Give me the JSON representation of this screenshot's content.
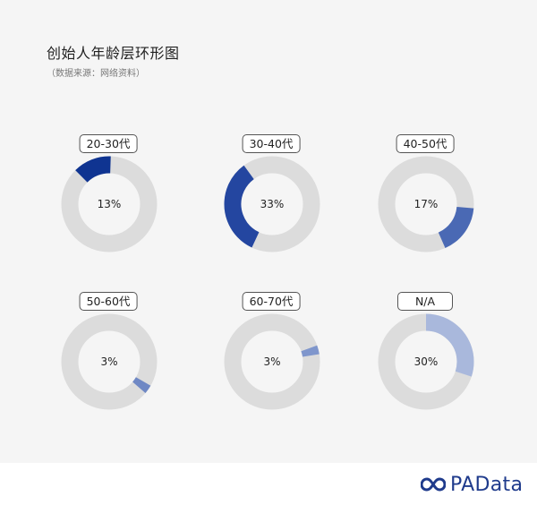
{
  "title": "创始人年龄层环形图",
  "subtitle": "（数据来源：网络资料）",
  "brand": "PAData",
  "chart_data": {
    "type": "pie",
    "variant": "donut",
    "title": "创始人年龄层环形图",
    "items": [
      {
        "label": "20-30代",
        "value": 13,
        "display": "13%",
        "color": "#0f3491"
      },
      {
        "label": "30-40代",
        "value": 33,
        "display": "33%",
        "color": "#2446a0"
      },
      {
        "label": "40-50代",
        "value": 17,
        "display": "17%",
        "color": "#4a69b4"
      },
      {
        "label": "50-60代",
        "value": 3,
        "display": "3%",
        "color": "#6f88c4"
      },
      {
        "label": "60-70代",
        "value": 3,
        "display": "3%",
        "color": "#7f96cc"
      },
      {
        "label": "N/A",
        "value": 30,
        "display": "30%",
        "color": "#a9b8dc"
      }
    ],
    "track_color": "#dcdcdc",
    "start_angles_deg": [
      -45,
      205,
      95,
      120,
      70,
      0
    ]
  }
}
